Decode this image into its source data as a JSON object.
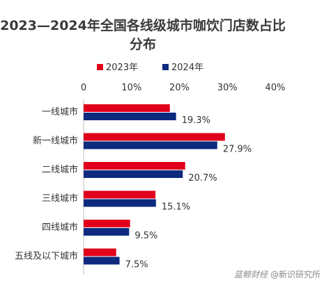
{
  "chart_data": {
    "type": "bar",
    "orientation": "horizontal",
    "title": "2023—2024年全国各线级城市咖饮门店数占比分布",
    "title_lines": [
      "2023—2024年全国各线级城市咖饮门店数占比",
      "分布"
    ],
    "categories": [
      "一线城市",
      "新一线城市",
      "二线城市",
      "三线城市",
      "四线城市",
      "五线及以下城市"
    ],
    "series": [
      {
        "name": "2023年",
        "color": "#e0001b",
        "values": [
          18.0,
          29.5,
          21.2,
          15.0,
          9.7,
          6.8
        ]
      },
      {
        "name": "2024年",
        "color": "#0d2a7f",
        "values": [
          19.3,
          27.9,
          20.7,
          15.1,
          9.5,
          7.5
        ]
      }
    ],
    "data_labels": [
      "19.3%",
      "27.9%",
      "20.7%",
      "15.1%",
      "9.5%",
      "7.5%"
    ],
    "xlim": [
      0,
      40
    ],
    "xticks": [
      0,
      10,
      20,
      30,
      40
    ],
    "xtick_labels": [
      "0",
      "10%",
      "20%",
      "30%",
      "40%"
    ],
    "axis_position": "top",
    "legend_position": "top",
    "grid": false
  },
  "watermark": {
    "brand": "蓝鲸财经",
    "source": "@新识研究所"
  }
}
